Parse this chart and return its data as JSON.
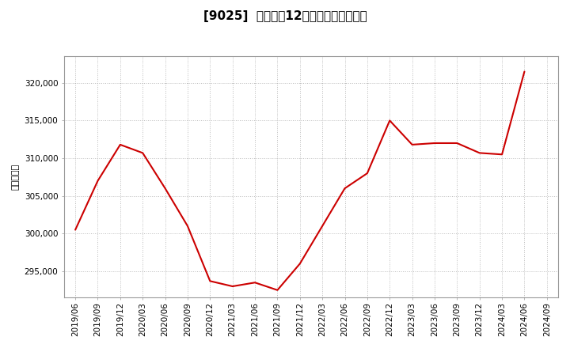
{
  "title": "[9025]  売上高の12か月移動合計の推移",
  "ylabel": "（百万円）",
  "line_color": "#cc0000",
  "background_color": "#ffffff",
  "plot_bg_color": "#ffffff",
  "grid_color": "#bbbbbb",
  "dates": [
    "2019/06",
    "2019/09",
    "2019/12",
    "2020/03",
    "2020/06",
    "2020/09",
    "2020/12",
    "2021/03",
    "2021/06",
    "2021/09",
    "2021/12",
    "2022/03",
    "2022/06",
    "2022/09",
    "2022/12",
    "2023/03",
    "2023/06",
    "2023/09",
    "2023/12",
    "2024/03",
    "2024/06",
    "2024/09"
  ],
  "values": [
    300500,
    307000,
    311800,
    310700,
    306000,
    301000,
    293700,
    293000,
    293500,
    292500,
    296000,
    301000,
    306000,
    308000,
    315000,
    311800,
    312000,
    312000,
    310700,
    310500,
    321500,
    null
  ],
  "yticks": [
    295000,
    300000,
    305000,
    310000,
    315000,
    320000
  ],
  "ylim": [
    291500,
    323500
  ],
  "title_fontsize": 11,
  "axis_fontsize": 7.5,
  "ylabel_fontsize": 8
}
